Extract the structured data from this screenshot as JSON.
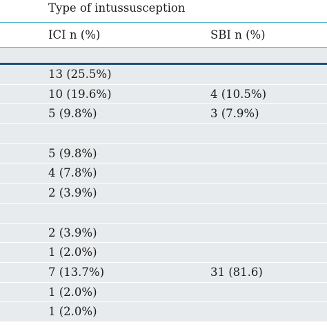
{
  "table": {
    "group_header": "Type of intussusception",
    "col_ici": "ICI n (%)",
    "col_sbi": "SBI n (%)",
    "rows": [
      {
        "ici": "13 (25.5%)",
        "sbi": ""
      },
      {
        "ici": "10 (19.6%)",
        "sbi": "4 (10.5%)"
      },
      {
        "ici": "5 (9.8%)",
        "sbi": "3 (7.9%)"
      },
      {
        "ici": "",
        "sbi": ""
      },
      {
        "ici": "5 (9.8%)",
        "sbi": ""
      },
      {
        "ici": "4 (7.8%)",
        "sbi": ""
      },
      {
        "ici": "2 (3.9%)",
        "sbi": ""
      },
      {
        "ici": "",
        "sbi": ""
      },
      {
        "ici": "2 (3.9%)",
        "sbi": ""
      },
      {
        "ici": "1 (2.0%)",
        "sbi": ""
      },
      {
        "ici": "7 (13.7%)",
        "sbi": "31 (81.6)"
      },
      {
        "ici": "1 (2.0%)",
        "sbi": ""
      },
      {
        "ici": "1 (2.0%)",
        "sbi": ""
      }
    ]
  }
}
